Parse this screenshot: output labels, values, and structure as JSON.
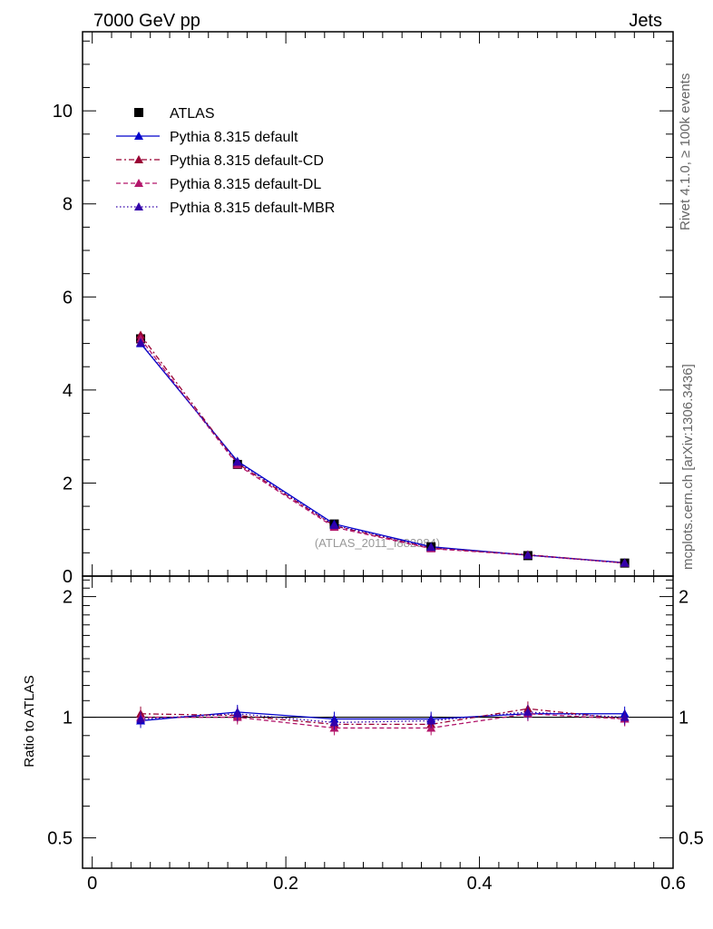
{
  "header": {
    "left": "7000 GeV pp",
    "right": "Jets"
  },
  "side": {
    "top": "Rivet 4.1.0, ≥ 100k events",
    "bottom": "mcplots.cern.ch [arXiv:1306.3436]"
  },
  "watermark": "(ATLAS_2011_I882984)",
  "colors": {
    "atlas": "#000000",
    "default": "#0000cc",
    "cd": "#990033",
    "dl": "#b3166b",
    "mbr": "#3300aa"
  },
  "chart_data": [
    {
      "type": "line",
      "panel": "main",
      "xlim": [
        -0.01,
        0.6
      ],
      "ylim": [
        0,
        11.7
      ],
      "yticks": [
        0,
        2,
        4,
        6,
        8,
        10
      ],
      "ytick_labels": [
        "0",
        "2",
        "4",
        "6",
        "8",
        "10"
      ],
      "x": [
        0.05,
        0.15,
        0.25,
        0.35,
        0.45,
        0.55
      ],
      "series": [
        {
          "key": "atlas",
          "name": "ATLAS",
          "values": [
            5.1,
            2.4,
            1.12,
            0.63,
            0.44,
            0.28
          ]
        },
        {
          "key": "default",
          "name": "Pythia 8.315 default",
          "values": [
            5.0,
            2.47,
            1.12,
            0.63,
            0.45,
            0.29
          ]
        },
        {
          "key": "cd",
          "name": "Pythia 8.315 default-CD",
          "values": [
            5.18,
            2.42,
            1.08,
            0.6,
            0.46,
            0.28
          ]
        },
        {
          "key": "dl",
          "name": "Pythia 8.315 default-DL",
          "values": [
            5.1,
            2.39,
            1.05,
            0.59,
            0.45,
            0.28
          ]
        },
        {
          "key": "mbr",
          "name": "Pythia 8.315 default-MBR",
          "values": [
            5.02,
            2.45,
            1.09,
            0.62,
            0.45,
            0.28
          ]
        }
      ]
    },
    {
      "type": "line",
      "panel": "ratio",
      "ylabel": "Ratio to ATLAS",
      "xlim": [
        -0.01,
        0.6
      ],
      "ylim": [
        0.42,
        2.25
      ],
      "yticks": [
        0.5,
        1,
        2
      ],
      "ytick_labels": [
        "0.5",
        "1",
        "2"
      ],
      "xticks": [
        0,
        0.2,
        0.4,
        0.6
      ],
      "xtick_labels": [
        "0",
        "0.2",
        "0.4",
        "0.6"
      ],
      "x": [
        0.05,
        0.15,
        0.25,
        0.35,
        0.45,
        0.55
      ],
      "series": [
        {
          "key": "default",
          "values": [
            0.98,
            1.03,
            0.99,
            0.99,
            1.02,
            1.02
          ]
        },
        {
          "key": "cd",
          "values": [
            1.02,
            1.01,
            0.96,
            0.96,
            1.05,
            0.99
          ]
        },
        {
          "key": "dl",
          "values": [
            1.0,
            1.0,
            0.94,
            0.94,
            1.02,
            0.99
          ]
        },
        {
          "key": "mbr",
          "values": [
            0.99,
            1.02,
            0.97,
            0.98,
            1.03,
            1.0
          ]
        }
      ]
    }
  ]
}
